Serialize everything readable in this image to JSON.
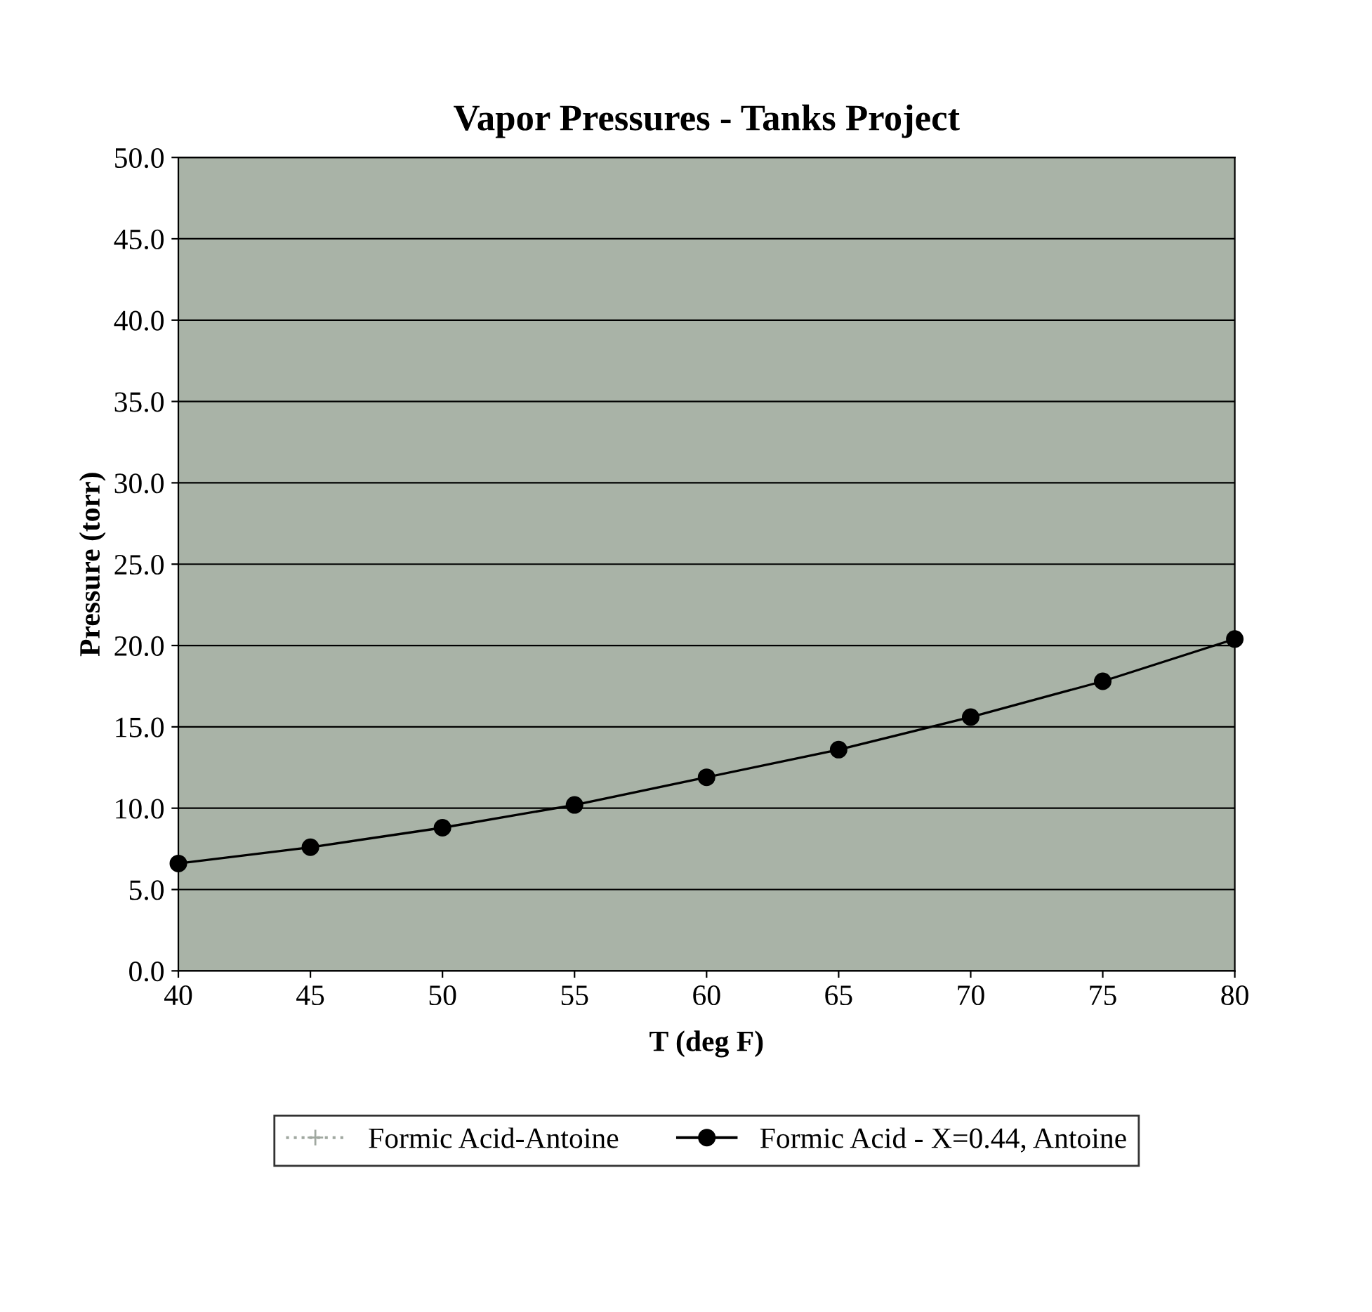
{
  "chart_data": {
    "type": "line",
    "title": "Vapor Pressures - Tanks Project",
    "xlabel": "T (deg F)",
    "ylabel": "Pressure (torr)",
    "x": [
      40,
      45,
      50,
      55,
      60,
      65,
      70,
      75,
      80
    ],
    "series": [
      {
        "name": "Formic Acid-Antoine",
        "color": "#a0a8a0",
        "marker": "cross",
        "line_style": "dotted",
        "values": [
          null,
          null,
          null,
          null,
          null,
          null,
          null,
          null,
          null
        ]
      },
      {
        "name": "Formic Acid - X=0.44, Antoine",
        "color": "#000000",
        "marker": "circle",
        "line_style": "solid",
        "values": [
          6.6,
          7.6,
          8.8,
          10.2,
          11.9,
          13.6,
          15.6,
          17.8,
          20.4
        ]
      }
    ],
    "xlim": [
      40,
      80
    ],
    "xticks": [
      40,
      45,
      50,
      55,
      60,
      65,
      70,
      75,
      80
    ],
    "ylim": [
      0,
      50
    ],
    "yticks": [
      {
        "value": 0,
        "label": "0.0"
      },
      {
        "value": 5,
        "label": "5.0"
      },
      {
        "value": 10,
        "label": "10.0"
      },
      {
        "value": 15,
        "label": "15.0"
      },
      {
        "value": 20,
        "label": "20.0"
      },
      {
        "value": 25,
        "label": "25.0"
      },
      {
        "value": 30,
        "label": "30.0"
      },
      {
        "value": 35,
        "label": "35.0"
      },
      {
        "value": 40,
        "label": "40.0"
      },
      {
        "value": 45,
        "label": "45.0"
      },
      {
        "value": 50,
        "label": "50.0"
      }
    ],
    "grid": "y",
    "legend": "bottom"
  }
}
